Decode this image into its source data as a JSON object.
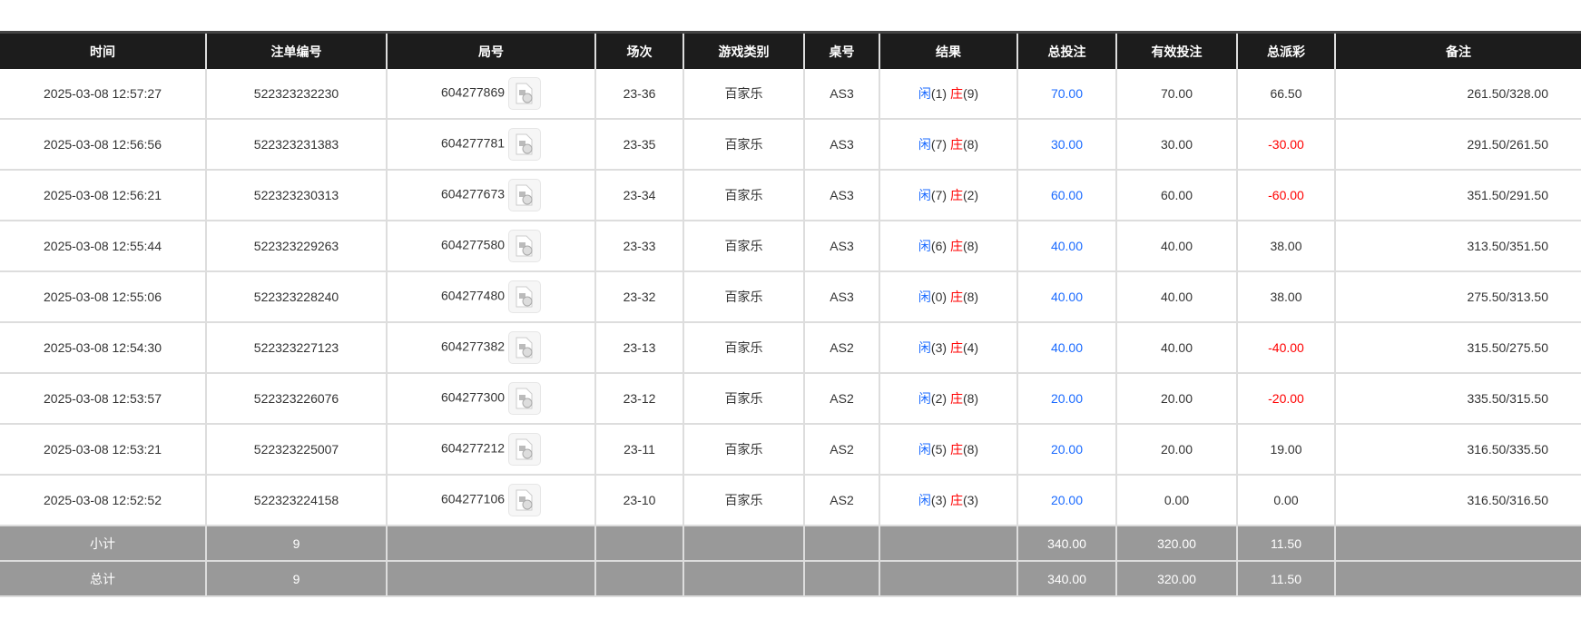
{
  "headers": [
    "时间",
    "注单编号",
    "局号",
    "场次",
    "游戏类别",
    "桌号",
    "结果",
    "总投注",
    "有效投注",
    "总派彩",
    "备注"
  ],
  "rows": [
    {
      "time": "2025-03-08 12:57:27",
      "order": "522323232230",
      "round": "604277869",
      "session": "23-36",
      "game": "百家乐",
      "table": "AS3",
      "p": "闲",
      "pv": "(1)",
      "b": "庄",
      "bv": "(9)",
      "bet": "70.00",
      "valid": "70.00",
      "payout": "66.50",
      "neg": false,
      "remark": "261.50/328.00"
    },
    {
      "time": "2025-03-08 12:56:56",
      "order": "522323231383",
      "round": "604277781",
      "session": "23-35",
      "game": "百家乐",
      "table": "AS3",
      "p": "闲",
      "pv": "(7)",
      "b": "庄",
      "bv": "(8)",
      "bet": "30.00",
      "valid": "30.00",
      "payout": "-30.00",
      "neg": true,
      "remark": "291.50/261.50"
    },
    {
      "time": "2025-03-08 12:56:21",
      "order": "522323230313",
      "round": "604277673",
      "session": "23-34",
      "game": "百家乐",
      "table": "AS3",
      "p": "闲",
      "pv": "(7)",
      "b": "庄",
      "bv": "(2)",
      "bet": "60.00",
      "valid": "60.00",
      "payout": "-60.00",
      "neg": true,
      "remark": "351.50/291.50"
    },
    {
      "time": "2025-03-08 12:55:44",
      "order": "522323229263",
      "round": "604277580",
      "session": "23-33",
      "game": "百家乐",
      "table": "AS3",
      "p": "闲",
      "pv": "(6)",
      "b": "庄",
      "bv": "(8)",
      "bet": "40.00",
      "valid": "40.00",
      "payout": "38.00",
      "neg": false,
      "remark": "313.50/351.50"
    },
    {
      "time": "2025-03-08 12:55:06",
      "order": "522323228240",
      "round": "604277480",
      "session": "23-32",
      "game": "百家乐",
      "table": "AS3",
      "p": "闲",
      "pv": "(0)",
      "b": "庄",
      "bv": "(8)",
      "bet": "40.00",
      "valid": "40.00",
      "payout": "38.00",
      "neg": false,
      "remark": "275.50/313.50"
    },
    {
      "time": "2025-03-08 12:54:30",
      "order": "522323227123",
      "round": "604277382",
      "session": "23-13",
      "game": "百家乐",
      "table": "AS2",
      "p": "闲",
      "pv": "(3)",
      "b": "庄",
      "bv": "(4)",
      "bet": "40.00",
      "valid": "40.00",
      "payout": "-40.00",
      "neg": true,
      "remark": "315.50/275.50"
    },
    {
      "time": "2025-03-08 12:53:57",
      "order": "522323226076",
      "round": "604277300",
      "session": "23-12",
      "game": "百家乐",
      "table": "AS2",
      "p": "闲",
      "pv": "(2)",
      "b": "庄",
      "bv": "(8)",
      "bet": "20.00",
      "valid": "20.00",
      "payout": "-20.00",
      "neg": true,
      "remark": "335.50/315.50"
    },
    {
      "time": "2025-03-08 12:53:21",
      "order": "522323225007",
      "round": "604277212",
      "session": "23-11",
      "game": "百家乐",
      "table": "AS2",
      "p": "闲",
      "pv": "(5)",
      "b": "庄",
      "bv": "(8)",
      "bet": "20.00",
      "valid": "20.00",
      "payout": "19.00",
      "neg": false,
      "remark": "316.50/335.50"
    },
    {
      "time": "2025-03-08 12:52:52",
      "order": "522323224158",
      "round": "604277106",
      "session": "23-10",
      "game": "百家乐",
      "table": "AS2",
      "p": "闲",
      "pv": "(3)",
      "b": "庄",
      "bv": "(3)",
      "bet": "20.00",
      "valid": "0.00",
      "payout": "0.00",
      "neg": false,
      "remark": "316.50/316.50"
    }
  ],
  "subtotal": {
    "label": "小计",
    "count": "9",
    "bet": "340.00",
    "valid": "320.00",
    "payout": "11.50"
  },
  "total": {
    "label": "总计",
    "count": "9",
    "bet": "340.00",
    "valid": "320.00",
    "payout": "11.50"
  },
  "icon": "video-replay-icon"
}
